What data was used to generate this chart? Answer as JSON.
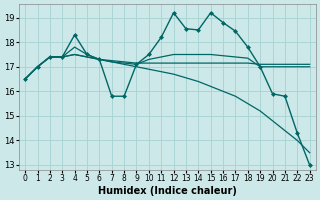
{
  "xlabel": "Humidex (Indice chaleur)",
  "bg_color": "#cce8e8",
  "grid_color": "#aad4d4",
  "line_color": "#006666",
  "xlim_min": -0.5,
  "xlim_max": 23.5,
  "ylim_min": 12.8,
  "ylim_max": 19.55,
  "yticks": [
    13,
    14,
    15,
    16,
    17,
    18,
    19
  ],
  "xticks": [
    0,
    1,
    2,
    3,
    4,
    5,
    6,
    7,
    8,
    9,
    10,
    11,
    12,
    13,
    14,
    15,
    16,
    17,
    18,
    19,
    20,
    21,
    22,
    23
  ],
  "lines": [
    {
      "x": [
        0,
        1,
        2,
        3,
        4,
        5,
        6,
        7,
        8,
        9,
        10,
        11,
        12,
        13,
        14,
        15,
        16,
        17,
        18,
        19,
        20,
        21,
        22,
        23
      ],
      "y": [
        16.5,
        17.0,
        17.4,
        17.4,
        18.3,
        17.5,
        17.3,
        15.8,
        15.8,
        17.1,
        17.5,
        18.2,
        19.2,
        18.55,
        18.5,
        19.2,
        18.8,
        18.45,
        17.8,
        17.0,
        15.9,
        15.8,
        14.3,
        13.0
      ],
      "marker": "D",
      "markersize": 2.0,
      "linewidth": 1.0
    },
    {
      "x": [
        0,
        1,
        2,
        3,
        4,
        5,
        6,
        7,
        8,
        9,
        10,
        11,
        12,
        13,
        14,
        15,
        16,
        17,
        18,
        19,
        20,
        21,
        22,
        23
      ],
      "y": [
        16.5,
        17.0,
        17.4,
        17.4,
        17.5,
        17.4,
        17.3,
        17.25,
        17.2,
        17.15,
        17.15,
        17.15,
        17.15,
        17.15,
        17.15,
        17.15,
        17.15,
        17.15,
        17.15,
        17.1,
        17.1,
        17.1,
        17.1,
        17.1
      ],
      "marker": null,
      "markersize": 0,
      "linewidth": 0.9
    },
    {
      "x": [
        0,
        1,
        2,
        3,
        4,
        5,
        6,
        7,
        8,
        9,
        10,
        11,
        12,
        13,
        14,
        15,
        16,
        17,
        18,
        19,
        20,
        21,
        22,
        23
      ],
      "y": [
        16.5,
        17.0,
        17.4,
        17.4,
        17.5,
        17.4,
        17.3,
        17.2,
        17.1,
        17.0,
        16.9,
        16.8,
        16.7,
        16.55,
        16.4,
        16.2,
        16.0,
        15.8,
        15.5,
        15.2,
        14.8,
        14.4,
        14.0,
        13.5
      ],
      "marker": null,
      "markersize": 0,
      "linewidth": 0.9
    },
    {
      "x": [
        0,
        1,
        2,
        3,
        4,
        5,
        6,
        7,
        8,
        9,
        10,
        11,
        12,
        13,
        14,
        15,
        16,
        17,
        18,
        19,
        20,
        21,
        22,
        23
      ],
      "y": [
        16.5,
        17.0,
        17.4,
        17.4,
        17.8,
        17.5,
        17.3,
        17.2,
        17.15,
        17.1,
        17.3,
        17.4,
        17.5,
        17.5,
        17.5,
        17.5,
        17.45,
        17.4,
        17.35,
        17.0,
        17.0,
        17.0,
        17.0,
        17.0
      ],
      "marker": null,
      "markersize": 0,
      "linewidth": 0.9
    }
  ]
}
